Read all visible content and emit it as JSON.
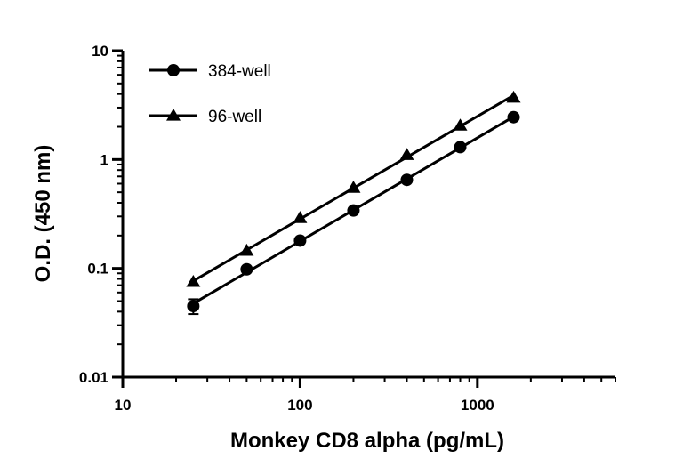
{
  "chart_data": {
    "type": "scatter",
    "title": "",
    "xlabel": "Monkey CD8 alpha (pg/mL)",
    "ylabel": "O.D. (450 nm)",
    "x_scale": "log",
    "y_scale": "log",
    "xlim": [
      10,
      6000
    ],
    "ylim": [
      0.01,
      10
    ],
    "x_ticks": [
      {
        "value": 10,
        "label": "10"
      },
      {
        "value": 100,
        "label": "100"
      },
      {
        "value": 1000,
        "label": "1000"
      }
    ],
    "y_ticks": [
      {
        "value": 0.01,
        "label": "0.01"
      },
      {
        "value": 0.1,
        "label": "0.1"
      },
      {
        "value": 1,
        "label": "1"
      },
      {
        "value": 10,
        "label": "10"
      }
    ],
    "grid": false,
    "legend_position": "top-left",
    "series": [
      {
        "name": "384-well",
        "marker": "circle",
        "color": "#000000",
        "x": [
          25,
          50,
          100,
          200,
          400,
          800,
          1600
        ],
        "y": [
          0.045,
          0.098,
          0.18,
          0.34,
          0.65,
          1.3,
          2.45
        ],
        "error": [
          0.007,
          0.003,
          0.005,
          0.01,
          0.02,
          0.03,
          0.05
        ]
      },
      {
        "name": "96-well",
        "marker": "triangle",
        "color": "#000000",
        "x": [
          25,
          50,
          100,
          200,
          400,
          800,
          1600
        ],
        "y": [
          0.075,
          0.145,
          0.29,
          0.55,
          1.1,
          2.05,
          3.7
        ],
        "error": [
          0.003,
          0.004,
          0.006,
          0.01,
          0.02,
          0.04,
          0.06
        ]
      }
    ]
  }
}
